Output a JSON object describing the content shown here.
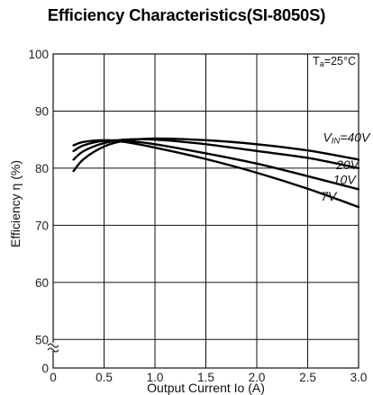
{
  "chart_data": {
    "type": "line",
    "title": "Efficiency Characteristics(SI-8050S)",
    "condition": {
      "label": "T",
      "sub": "a",
      "value": "=25°C"
    },
    "xlabel": "Output Current Io (A)",
    "ylabel": "Efficiency η (%)",
    "xlim": [
      0,
      3.0
    ],
    "ylim": [
      45,
      100
    ],
    "y_axis_break": true,
    "grid": true,
    "x_ticks": [
      "0",
      "0.5",
      "1.0",
      "1.5",
      "2.0",
      "2.5",
      "3.0"
    ],
    "y_ticks": [
      "0",
      "50",
      "60",
      "70",
      "80",
      "90",
      "100"
    ],
    "series": [
      {
        "name": "V",
        "name_sub": "IN",
        "name_rest": "=40V",
        "x": [
          0.2,
          0.3,
          0.5,
          0.7,
          1.0,
          1.5,
          2.0,
          2.5,
          3.0
        ],
        "y": [
          79.5,
          81.6,
          83.8,
          84.8,
          85.2,
          84.9,
          84.2,
          83.1,
          81.5
        ]
      },
      {
        "name": "20V",
        "x": [
          0.2,
          0.3,
          0.5,
          0.7,
          1.0,
          1.5,
          2.0,
          2.5,
          3.0
        ],
        "y": [
          81.5,
          83.0,
          84.4,
          85.0,
          85.0,
          84.2,
          83.0,
          81.8,
          80.0
        ]
      },
      {
        "name": "10V",
        "x": [
          0.2,
          0.3,
          0.5,
          0.7,
          1.0,
          1.5,
          2.0,
          2.5,
          3.0
        ],
        "y": [
          83.0,
          84.0,
          84.8,
          84.8,
          84.2,
          82.6,
          80.8,
          78.6,
          76.3
        ]
      },
      {
        "name": "7V",
        "x": [
          0.2,
          0.3,
          0.5,
          0.7,
          1.0,
          1.5,
          2.0,
          2.5,
          3.0
        ],
        "y": [
          84.0,
          84.6,
          84.9,
          84.6,
          83.6,
          81.6,
          79.2,
          76.4,
          73.2
        ]
      }
    ]
  }
}
